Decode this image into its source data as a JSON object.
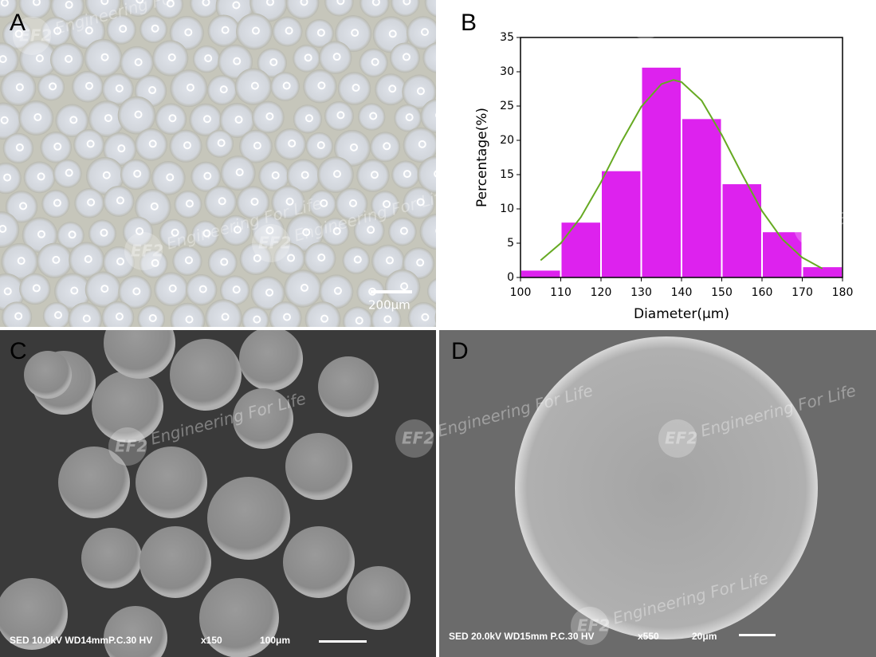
{
  "panels": {
    "labels": [
      "A",
      "B",
      "C",
      "D"
    ],
    "scale_bar_A": "200μm",
    "sem_C": {
      "info": "SED 10.0kV WD14mmP.C.30 HV",
      "mag": "x150",
      "scale": "100μm"
    },
    "sem_D": {
      "info": "SED  20.0kV WD15mm P.C.30  HV",
      "mag": "x550",
      "scale": "20μm"
    },
    "watermark": "Engineering For Life",
    "logo": "EF2"
  },
  "chart_data": {
    "type": "histogram",
    "xlabel": "Diameter(μm)",
    "ylabel": "Percentage(%)",
    "bins": [
      100,
      110,
      120,
      130,
      140,
      150,
      160,
      170,
      180
    ],
    "values": [
      1,
      8,
      15.5,
      30.6,
      23.1,
      13.6,
      6.6,
      1.5
    ],
    "color": "#dd22ee",
    "fit": {
      "x": [
        105,
        110,
        115,
        120,
        125,
        130,
        135,
        138,
        140,
        145,
        150,
        155,
        160,
        165,
        170,
        175
      ],
      "values": [
        2.5,
        5.0,
        8.8,
        13.9,
        19.7,
        24.9,
        28.2,
        28.8,
        28.5,
        25.8,
        20.8,
        15.1,
        9.7,
        5.6,
        2.9,
        1.3
      ],
      "color": "#66aa22"
    },
    "xlim": [
      100,
      180
    ],
    "ylim": [
      0,
      35
    ],
    "xticks": [
      100,
      110,
      120,
      130,
      140,
      150,
      160,
      170,
      180
    ],
    "yticks": [
      0,
      5,
      10,
      15,
      20,
      25,
      30,
      35
    ]
  }
}
